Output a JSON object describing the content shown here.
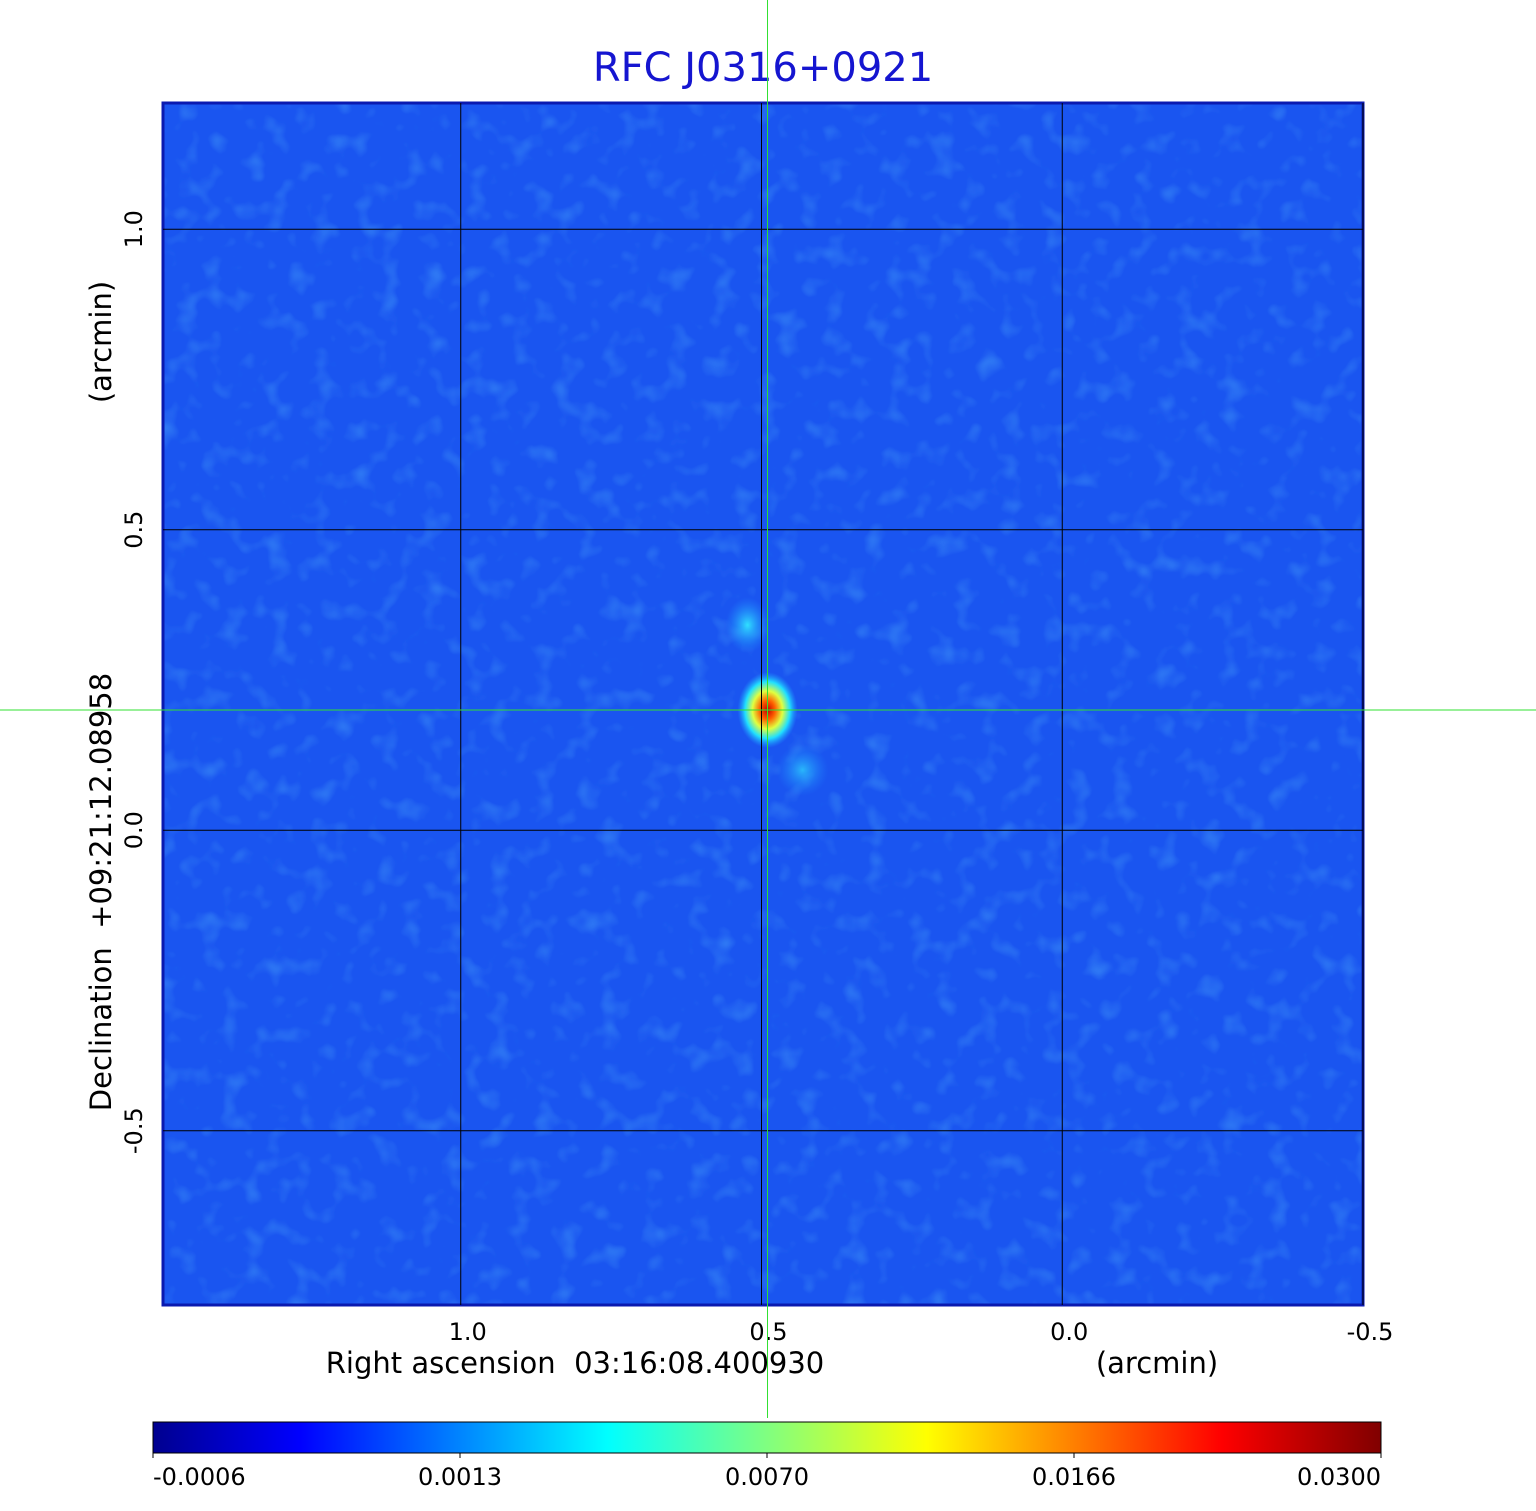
{
  "chart_data": {
    "type": "image",
    "title": "RFC J0316+0921",
    "x_label": "Right ascension  03:16:08.400930",
    "x_unit": "(arcmin)",
    "y_label": "Declination  +09:21:12.08958",
    "y_unit": "(arcmin)",
    "xlim": [
      1.495,
      -0.5
    ],
    "xticks": [
      {
        "value": 1,
        "label": "1.0"
      },
      0.5,
      {
        "value": 0,
        "label": "0.0"
      },
      -0.5
    ],
    "ylim": [
      -0.79,
      1.21
    ],
    "yticks": [
      {
        "value": 1,
        "label": "1.0"
      },
      0.5,
      {
        "value": 0,
        "label": "0.0"
      },
      -0.5
    ],
    "grid": true,
    "crosshair": [
      0.49,
      0.2
    ],
    "colorbar_ticks": [
      -0.0006,
      0.0013,
      {
        "value": 0.007,
        "label": "0.0070"
      },
      0.0166,
      {
        "value": 0.03,
        "label": "0.0300"
      }
    ]
  }
}
